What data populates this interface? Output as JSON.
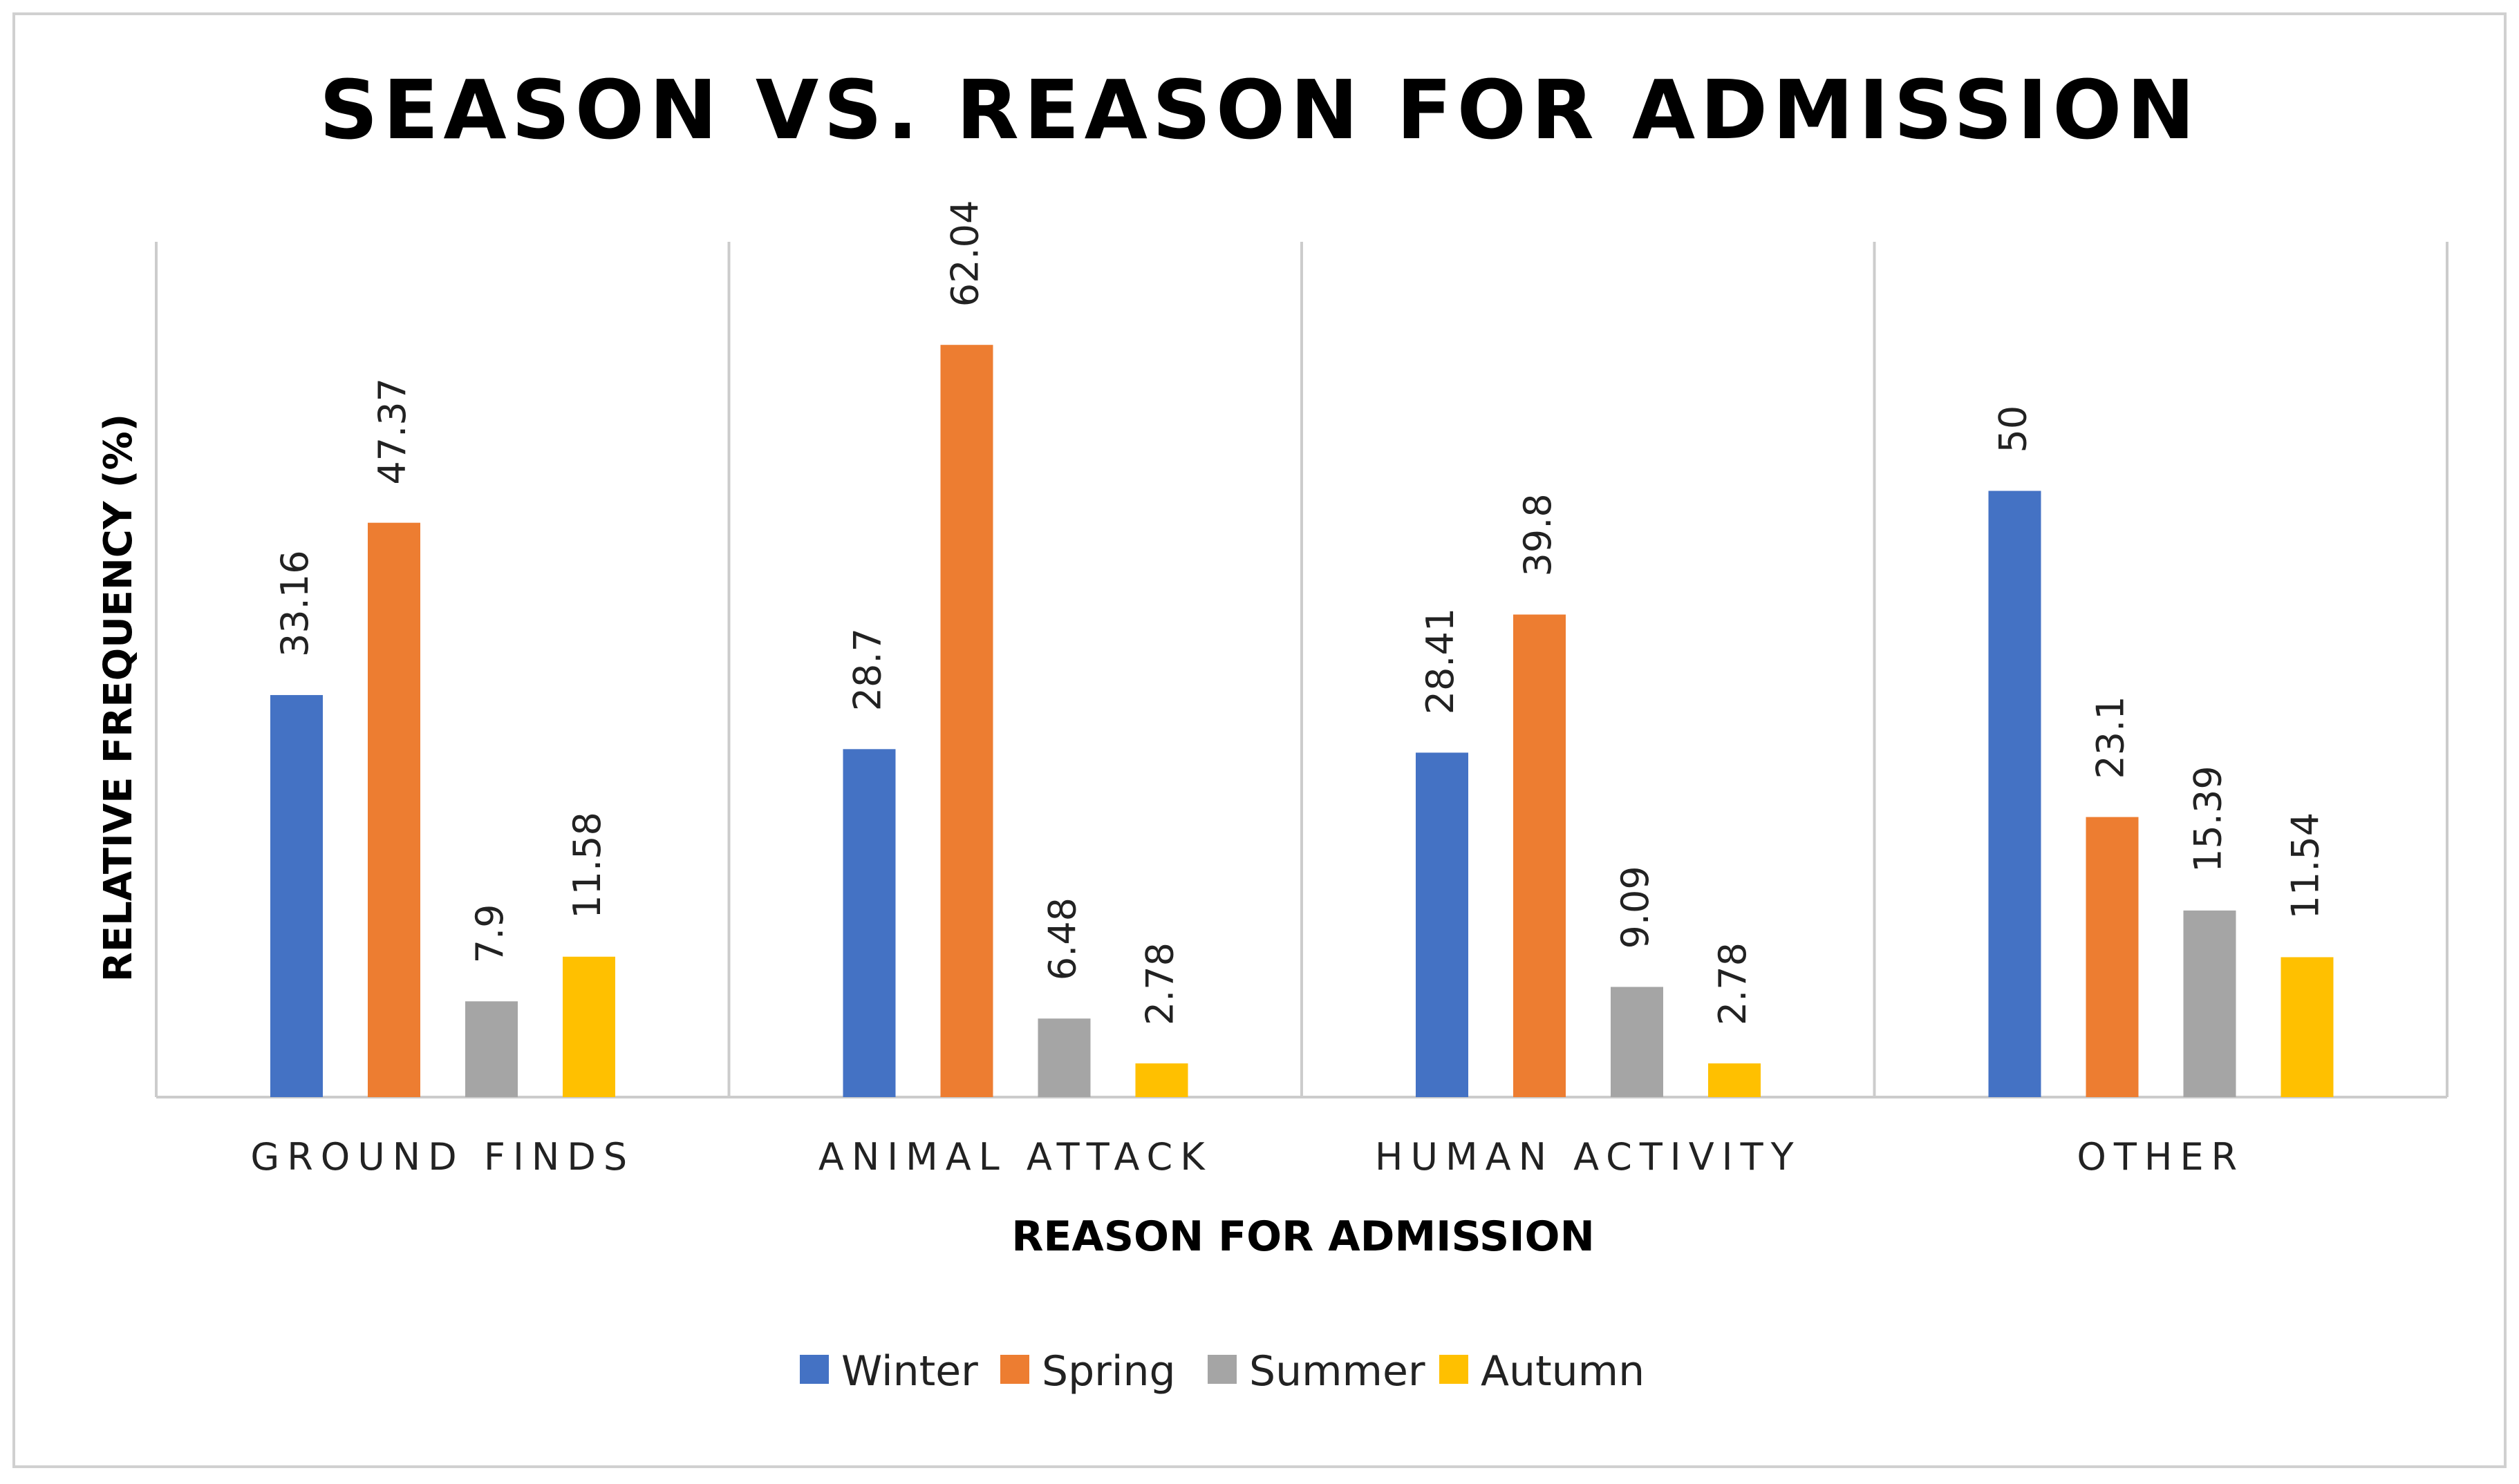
{
  "chart_data": {
    "type": "bar",
    "title": "SEASON VS. REASON FOR ADMISSION",
    "xlabel": "REASON FOR ADMISSION",
    "ylabel": "RELATIVE FREQUENCY (%)",
    "ylim": [
      0,
      70
    ],
    "grid": false,
    "legend_position": "bottom",
    "categories": [
      "GROUND FINDS",
      "ANIMAL ATTACK",
      "HUMAN ACTIVITY",
      "OTHER"
    ],
    "series": [
      {
        "name": "Winter",
        "color": "#4472C4",
        "values": [
          33.16,
          28.7,
          28.41,
          50
        ]
      },
      {
        "name": "Spring",
        "color": "#ED7D31",
        "values": [
          47.37,
          62.04,
          39.8,
          23.1
        ]
      },
      {
        "name": "Summer",
        "color": "#A5A5A5",
        "values": [
          7.9,
          6.48,
          9.09,
          15.39
        ]
      },
      {
        "name": "Autumn",
        "color": "#FFC000",
        "values": [
          11.58,
          2.78,
          2.78,
          11.54
        ]
      }
    ],
    "data_labels": [
      [
        "33.16",
        "28.7",
        "28.41",
        "50"
      ],
      [
        "47.37",
        "62.04",
        "39.8",
        "23.1"
      ],
      [
        "7.9",
        "6.48",
        "9.09",
        "15.39"
      ],
      [
        "11.58",
        "2.78",
        "2.78",
        "11.54"
      ]
    ]
  },
  "colors": {
    "frame": "#d0d0d0",
    "axis": "#cccccc",
    "text": "#000000",
    "label": "#222222"
  }
}
